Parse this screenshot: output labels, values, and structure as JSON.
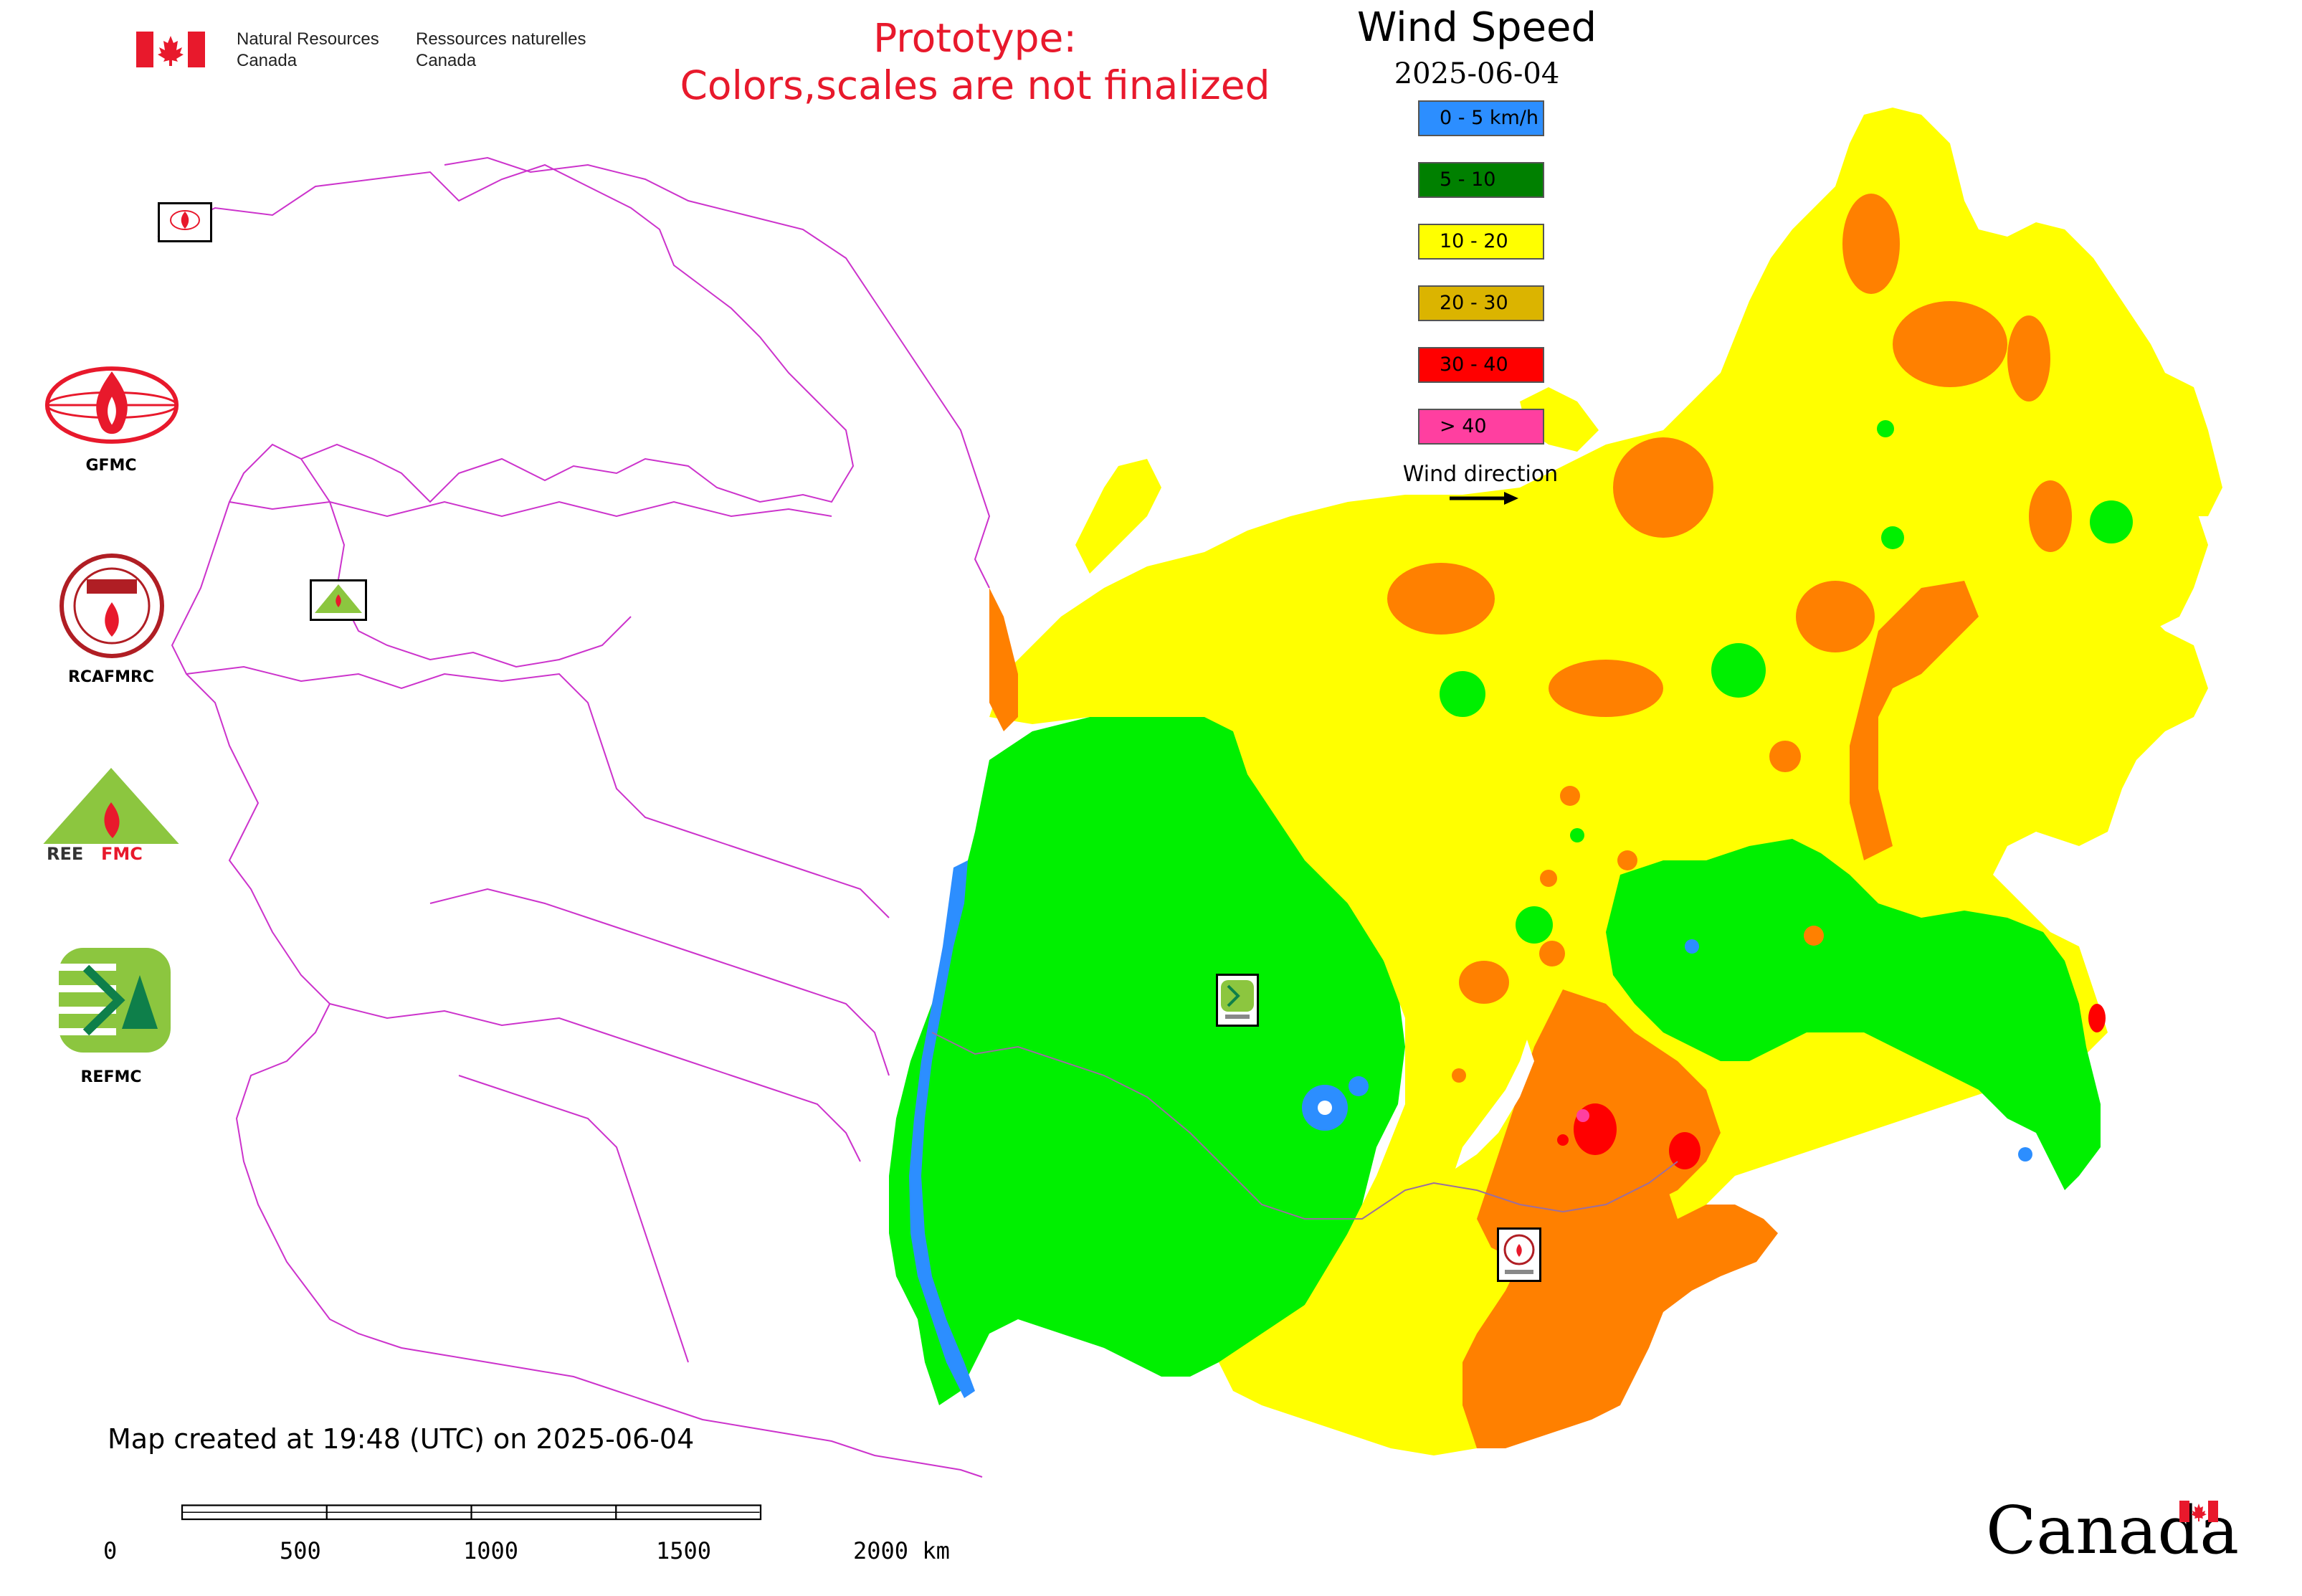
{
  "header": {
    "department_en": "Natural Resources\nCanada",
    "department_fr": "Ressources naturelles\nCanada",
    "prototype_line1": "Prototype:",
    "prototype_line2": "Colors,scales are not finalized"
  },
  "legend": {
    "title": "Wind Speed",
    "date": "2025-06-04",
    "items": [
      {
        "label": "0 - 5 km/h",
        "color": "#2c8eff"
      },
      {
        "label": "5 - 10",
        "color": "#008000"
      },
      {
        "label": "10 - 20",
        "color": "#ffff00"
      },
      {
        "label": "20 - 30",
        "color": "#dbb400"
      },
      {
        "label": "30 - 40",
        "color": "#ff0000"
      },
      {
        "label": "> 40",
        "color": "#ff3fa0"
      }
    ],
    "wind_direction_label": "Wind direction"
  },
  "field_colors": {
    "calm": "#2c8eff",
    "light": "#00f000",
    "moderate": "#ffff00",
    "fresh": "#ff8000",
    "strong": "#ff0000",
    "border": "#cc33cc"
  },
  "logos": [
    {
      "label": "GFMC",
      "icon": "gfmc-flame-globe-icon"
    },
    {
      "label": "RCAFMRC",
      "icon": "rcafmrc-seal-icon"
    },
    {
      "label": "REEFMC",
      "icon": "reefmc-triangle-icon"
    },
    {
      "label": "REFMC",
      "icon": "refmc-sigma-icon"
    }
  ],
  "map_markers": [
    {
      "label": "GFMC",
      "icon": "gfmc-marker-icon"
    },
    {
      "label": "REEFMC",
      "icon": "reefmc-marker-icon"
    },
    {
      "label": "REFMC",
      "icon": "refmc-marker-icon"
    },
    {
      "label": "RCAFMRC",
      "icon": "rcafmrc-marker-icon"
    }
  ],
  "footer": {
    "created_text": "Map created at 19:48 (UTC) on 2025-06-04",
    "scale_ticks": [
      "0",
      "500",
      "1000",
      "1500",
      "2000 km"
    ],
    "wordmark": "Canada"
  }
}
